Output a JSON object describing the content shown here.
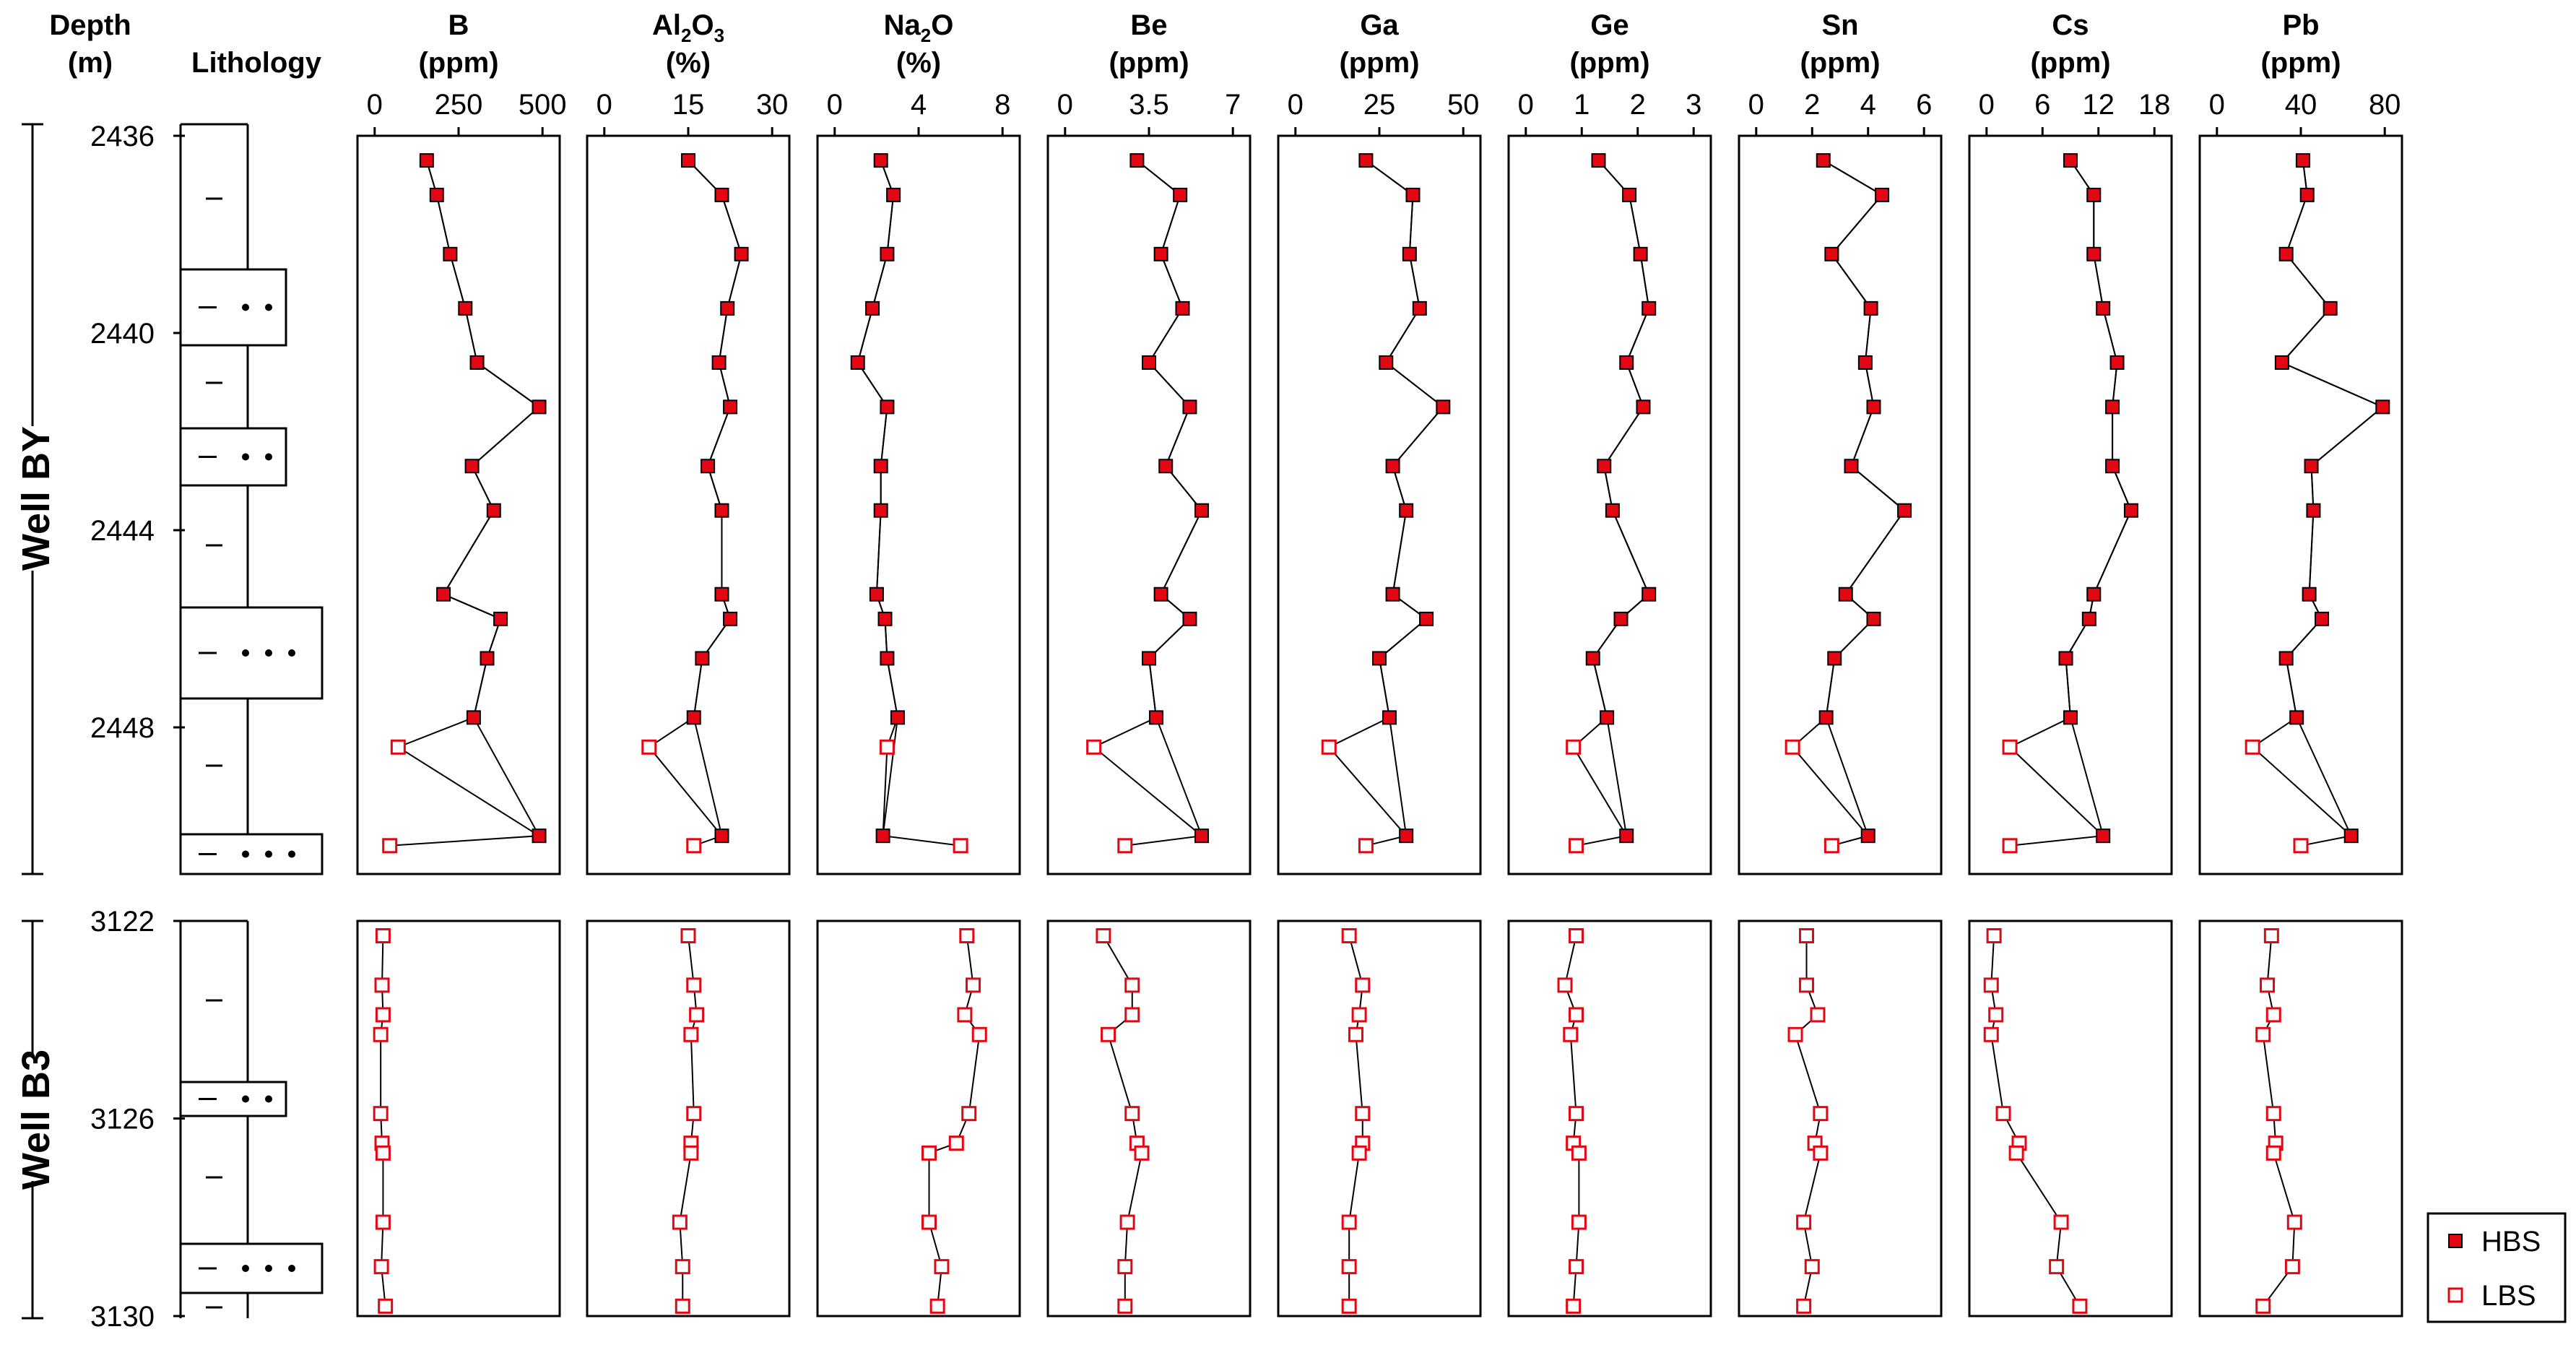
{
  "chart_data": {
    "type": "line",
    "title": "",
    "header": {
      "depth_label": "Depth",
      "depth_unit": "(m)",
      "lithology_label": "Lithology"
    },
    "wells": [
      {
        "name": "Well BY",
        "depth_ticks": [
          2436,
          2440,
          2444,
          2448
        ],
        "ylim": [
          2436,
          2451
        ]
      },
      {
        "name": "Well B3",
        "depth_ticks": [
          3122,
          3126,
          3130
        ],
        "ylim": [
          3122,
          3130
        ]
      }
    ],
    "legend": [
      {
        "key": "HBS",
        "label": "HBS",
        "fill": "#e30613",
        "stroke": "#000000"
      },
      {
        "key": "LBS",
        "label": "LBS",
        "fill": "#ffffff",
        "stroke": "#e30613"
      }
    ],
    "panels": [
      {
        "name": "B",
        "unit": "(ppm)",
        "xlim": [
          0,
          500
        ],
        "ticks": [
          "0",
          "250",
          "500"
        ],
        "by_hbs": [
          {
            "d": 2436.5,
            "v": 155
          },
          {
            "d": 2437.2,
            "v": 185
          },
          {
            "d": 2438.4,
            "v": 225
          },
          {
            "d": 2439.5,
            "v": 270
          },
          {
            "d": 2440.6,
            "v": 305
          },
          {
            "d": 2441.5,
            "v": 490
          },
          {
            "d": 2442.7,
            "v": 290
          },
          {
            "d": 2443.6,
            "v": 355
          },
          {
            "d": 2445.3,
            "v": 205
          },
          {
            "d": 2445.8,
            "v": 375
          },
          {
            "d": 2446.6,
            "v": 335
          },
          {
            "d": 2447.8,
            "v": 295
          },
          {
            "d": 2450.2,
            "v": 490
          }
        ],
        "by_lbs": [
          {
            "d": 2448.4,
            "v": 70
          },
          {
            "d": 2450.4,
            "v": 45
          }
        ],
        "b3_lbs": [
          {
            "d": 3122.3,
            "v": 25
          },
          {
            "d": 3123.3,
            "v": 22
          },
          {
            "d": 3123.9,
            "v": 25
          },
          {
            "d": 3124.3,
            "v": 18
          },
          {
            "d": 3125.9,
            "v": 18
          },
          {
            "d": 3126.5,
            "v": 22
          },
          {
            "d": 3126.7,
            "v": 25
          },
          {
            "d": 3128.1,
            "v": 25
          },
          {
            "d": 3129.0,
            "v": 20
          },
          {
            "d": 3129.8,
            "v": 32
          }
        ]
      },
      {
        "name": "Al2O3",
        "unit": "(%)",
        "xlim": [
          0,
          30
        ],
        "ticks": [
          "0",
          "15",
          "30"
        ],
        "by_hbs": [
          {
            "d": 2436.5,
            "v": 15
          },
          {
            "d": 2437.2,
            "v": 21
          },
          {
            "d": 2438.4,
            "v": 24.5
          },
          {
            "d": 2439.5,
            "v": 22
          },
          {
            "d": 2440.6,
            "v": 20.5
          },
          {
            "d": 2441.5,
            "v": 22.5
          },
          {
            "d": 2442.7,
            "v": 18.5
          },
          {
            "d": 2443.6,
            "v": 21
          },
          {
            "d": 2445.3,
            "v": 21
          },
          {
            "d": 2445.8,
            "v": 22.5
          },
          {
            "d": 2446.6,
            "v": 17.5
          },
          {
            "d": 2447.8,
            "v": 16
          },
          {
            "d": 2450.2,
            "v": 21
          }
        ],
        "by_lbs": [
          {
            "d": 2448.4,
            "v": 8
          },
          {
            "d": 2450.4,
            "v": 16
          }
        ],
        "b3_lbs": [
          {
            "d": 3122.3,
            "v": 15
          },
          {
            "d": 3123.3,
            "v": 16
          },
          {
            "d": 3123.9,
            "v": 16.5
          },
          {
            "d": 3124.3,
            "v": 15.5
          },
          {
            "d": 3125.9,
            "v": 16
          },
          {
            "d": 3126.5,
            "v": 15.5
          },
          {
            "d": 3126.7,
            "v": 15.5
          },
          {
            "d": 3128.1,
            "v": 13.5
          },
          {
            "d": 3129.0,
            "v": 14
          },
          {
            "d": 3129.8,
            "v": 14
          }
        ]
      },
      {
        "name": "Na2O",
        "unit": "(%)",
        "xlim": [
          0,
          8
        ],
        "ticks": [
          "0",
          "4",
          "8"
        ],
        "by_hbs": [
          {
            "d": 2436.5,
            "v": 2.2
          },
          {
            "d": 2437.2,
            "v": 2.8
          },
          {
            "d": 2438.4,
            "v": 2.5
          },
          {
            "d": 2439.5,
            "v": 1.8
          },
          {
            "d": 2440.6,
            "v": 1.1
          },
          {
            "d": 2441.5,
            "v": 2.5
          },
          {
            "d": 2442.7,
            "v": 2.2
          },
          {
            "d": 2443.6,
            "v": 2.2
          },
          {
            "d": 2445.3,
            "v": 2.0
          },
          {
            "d": 2445.8,
            "v": 2.4
          },
          {
            "d": 2446.6,
            "v": 2.5
          },
          {
            "d": 2447.8,
            "v": 3.0
          },
          {
            "d": 2450.2,
            "v": 2.3
          }
        ],
        "by_lbs": [
          {
            "d": 2448.4,
            "v": 2.5
          },
          {
            "d": 2450.4,
            "v": 6.0
          }
        ],
        "b3_lbs": [
          {
            "d": 3122.3,
            "v": 6.3
          },
          {
            "d": 3123.3,
            "v": 6.6
          },
          {
            "d": 3123.9,
            "v": 6.2
          },
          {
            "d": 3124.3,
            "v": 6.9
          },
          {
            "d": 3125.9,
            "v": 6.4
          },
          {
            "d": 3126.5,
            "v": 5.8
          },
          {
            "d": 3126.7,
            "v": 4.5
          },
          {
            "d": 3128.1,
            "v": 4.5
          },
          {
            "d": 3129.0,
            "v": 5.1
          },
          {
            "d": 3129.8,
            "v": 4.9
          }
        ]
      },
      {
        "name": "Be",
        "unit": "(ppm)",
        "xlim": [
          0,
          7
        ],
        "ticks": [
          "0",
          "3.5",
          "7"
        ],
        "by_hbs": [
          {
            "d": 2436.5,
            "v": 3.0
          },
          {
            "d": 2437.2,
            "v": 4.8
          },
          {
            "d": 2438.4,
            "v": 4.0
          },
          {
            "d": 2439.5,
            "v": 4.9
          },
          {
            "d": 2440.6,
            "v": 3.5
          },
          {
            "d": 2441.5,
            "v": 5.2
          },
          {
            "d": 2442.7,
            "v": 4.2
          },
          {
            "d": 2443.6,
            "v": 5.7
          },
          {
            "d": 2445.3,
            "v": 4.0
          },
          {
            "d": 2445.8,
            "v": 5.2
          },
          {
            "d": 2446.6,
            "v": 3.5
          },
          {
            "d": 2447.8,
            "v": 3.8
          },
          {
            "d": 2450.2,
            "v": 5.7
          }
        ],
        "by_lbs": [
          {
            "d": 2448.4,
            "v": 1.2
          },
          {
            "d": 2450.4,
            "v": 2.5
          }
        ],
        "b3_lbs": [
          {
            "d": 3122.3,
            "v": 1.6
          },
          {
            "d": 3123.3,
            "v": 2.8
          },
          {
            "d": 3123.9,
            "v": 2.8
          },
          {
            "d": 3124.3,
            "v": 1.8
          },
          {
            "d": 3125.9,
            "v": 2.8
          },
          {
            "d": 3126.5,
            "v": 3.0
          },
          {
            "d": 3126.7,
            "v": 3.2
          },
          {
            "d": 3128.1,
            "v": 2.6
          },
          {
            "d": 3129.0,
            "v": 2.5
          },
          {
            "d": 3129.8,
            "v": 2.5
          }
        ]
      },
      {
        "name": "Ga",
        "unit": "(ppm)",
        "xlim": [
          0,
          50
        ],
        "ticks": [
          "0",
          "25",
          "50"
        ],
        "by_hbs": [
          {
            "d": 2436.5,
            "v": 21
          },
          {
            "d": 2437.2,
            "v": 35
          },
          {
            "d": 2438.4,
            "v": 34
          },
          {
            "d": 2439.5,
            "v": 37
          },
          {
            "d": 2440.6,
            "v": 27
          },
          {
            "d": 2441.5,
            "v": 44
          },
          {
            "d": 2442.7,
            "v": 29
          },
          {
            "d": 2443.6,
            "v": 33
          },
          {
            "d": 2445.3,
            "v": 29
          },
          {
            "d": 2445.8,
            "v": 39
          },
          {
            "d": 2446.6,
            "v": 25
          },
          {
            "d": 2447.8,
            "v": 28
          },
          {
            "d": 2450.2,
            "v": 33
          }
        ],
        "by_lbs": [
          {
            "d": 2448.4,
            "v": 10
          },
          {
            "d": 2450.4,
            "v": 21
          }
        ],
        "b3_lbs": [
          {
            "d": 3122.3,
            "v": 16
          },
          {
            "d": 3123.3,
            "v": 20
          },
          {
            "d": 3123.9,
            "v": 19
          },
          {
            "d": 3124.3,
            "v": 18
          },
          {
            "d": 3125.9,
            "v": 20
          },
          {
            "d": 3126.5,
            "v": 20
          },
          {
            "d": 3126.7,
            "v": 19
          },
          {
            "d": 3128.1,
            "v": 16
          },
          {
            "d": 3129.0,
            "v": 16
          },
          {
            "d": 3129.8,
            "v": 16
          }
        ]
      },
      {
        "name": "Ge",
        "unit": "(ppm)",
        "xlim": [
          0,
          3
        ],
        "ticks": [
          "0",
          "1",
          "2",
          "3"
        ],
        "by_hbs": [
          {
            "d": 2436.5,
            "v": 1.3
          },
          {
            "d": 2437.2,
            "v": 1.85
          },
          {
            "d": 2438.4,
            "v": 2.05
          },
          {
            "d": 2439.5,
            "v": 2.2
          },
          {
            "d": 2440.6,
            "v": 1.8
          },
          {
            "d": 2441.5,
            "v": 2.1
          },
          {
            "d": 2442.7,
            "v": 1.4
          },
          {
            "d": 2443.6,
            "v": 1.55
          },
          {
            "d": 2445.3,
            "v": 2.2
          },
          {
            "d": 2445.8,
            "v": 1.7
          },
          {
            "d": 2446.6,
            "v": 1.2
          },
          {
            "d": 2447.8,
            "v": 1.45
          },
          {
            "d": 2450.2,
            "v": 1.8
          }
        ],
        "by_lbs": [
          {
            "d": 2448.4,
            "v": 0.85
          },
          {
            "d": 2450.4,
            "v": 0.9
          }
        ],
        "b3_lbs": [
          {
            "d": 3122.3,
            "v": 0.9
          },
          {
            "d": 3123.3,
            "v": 0.7
          },
          {
            "d": 3123.9,
            "v": 0.9
          },
          {
            "d": 3124.3,
            "v": 0.8
          },
          {
            "d": 3125.9,
            "v": 0.9
          },
          {
            "d": 3126.5,
            "v": 0.85
          },
          {
            "d": 3126.7,
            "v": 0.95
          },
          {
            "d": 3128.1,
            "v": 0.95
          },
          {
            "d": 3129.0,
            "v": 0.9
          },
          {
            "d": 3129.8,
            "v": 0.85
          }
        ]
      },
      {
        "name": "Sn",
        "unit": "(ppm)",
        "xlim": [
          0,
          6
        ],
        "ticks": [
          "0",
          "2",
          "4",
          "6"
        ],
        "by_hbs": [
          {
            "d": 2436.5,
            "v": 2.4
          },
          {
            "d": 2437.2,
            "v": 4.5
          },
          {
            "d": 2438.4,
            "v": 2.7
          },
          {
            "d": 2439.5,
            "v": 4.1
          },
          {
            "d": 2440.6,
            "v": 3.9
          },
          {
            "d": 2441.5,
            "v": 4.2
          },
          {
            "d": 2442.7,
            "v": 3.4
          },
          {
            "d": 2443.6,
            "v": 5.3
          },
          {
            "d": 2445.3,
            "v": 3.2
          },
          {
            "d": 2445.8,
            "v": 4.2
          },
          {
            "d": 2446.6,
            "v": 2.8
          },
          {
            "d": 2447.8,
            "v": 2.5
          },
          {
            "d": 2450.2,
            "v": 4.0
          }
        ],
        "by_lbs": [
          {
            "d": 2448.4,
            "v": 1.3
          },
          {
            "d": 2450.4,
            "v": 2.7
          }
        ],
        "b3_lbs": [
          {
            "d": 3122.3,
            "v": 1.8
          },
          {
            "d": 3123.3,
            "v": 1.8
          },
          {
            "d": 3123.9,
            "v": 2.2
          },
          {
            "d": 3124.3,
            "v": 1.4
          },
          {
            "d": 3125.9,
            "v": 2.3
          },
          {
            "d": 3126.5,
            "v": 2.1
          },
          {
            "d": 3126.7,
            "v": 2.3
          },
          {
            "d": 3128.1,
            "v": 1.7
          },
          {
            "d": 3129.0,
            "v": 2.0
          },
          {
            "d": 3129.8,
            "v": 1.7
          }
        ]
      },
      {
        "name": "Cs",
        "unit": "(ppm)",
        "xlim": [
          0,
          18
        ],
        "ticks": [
          "0",
          "6",
          "12",
          "18"
        ],
        "by_hbs": [
          {
            "d": 2436.5,
            "v": 9
          },
          {
            "d": 2437.2,
            "v": 11.5
          },
          {
            "d": 2438.4,
            "v": 11.5
          },
          {
            "d": 2439.5,
            "v": 12.5
          },
          {
            "d": 2440.6,
            "v": 14
          },
          {
            "d": 2441.5,
            "v": 13.5
          },
          {
            "d": 2442.7,
            "v": 13.5
          },
          {
            "d": 2443.6,
            "v": 15.5
          },
          {
            "d": 2445.3,
            "v": 11.5
          },
          {
            "d": 2445.8,
            "v": 11
          },
          {
            "d": 2446.6,
            "v": 8.5
          },
          {
            "d": 2447.8,
            "v": 9
          },
          {
            "d": 2450.2,
            "v": 12.5
          }
        ],
        "by_lbs": [
          {
            "d": 2448.4,
            "v": 2.5
          },
          {
            "d": 2450.4,
            "v": 2.5
          }
        ],
        "b3_lbs": [
          {
            "d": 3122.3,
            "v": 0.8
          },
          {
            "d": 3123.3,
            "v": 0.5
          },
          {
            "d": 3123.9,
            "v": 1.0
          },
          {
            "d": 3124.3,
            "v": 0.5
          },
          {
            "d": 3125.9,
            "v": 1.8
          },
          {
            "d": 3126.5,
            "v": 3.5
          },
          {
            "d": 3126.7,
            "v": 3.2
          },
          {
            "d": 3128.1,
            "v": 8.0
          },
          {
            "d": 3129.0,
            "v": 7.5
          },
          {
            "d": 3129.8,
            "v": 10.0
          }
        ]
      },
      {
        "name": "Pb",
        "unit": "(ppm)",
        "xlim": [
          0,
          80
        ],
        "ticks": [
          "0",
          "40",
          "80"
        ],
        "by_hbs": [
          {
            "d": 2436.5,
            "v": 41
          },
          {
            "d": 2437.2,
            "v": 43
          },
          {
            "d": 2438.4,
            "v": 33
          },
          {
            "d": 2439.5,
            "v": 54
          },
          {
            "d": 2440.6,
            "v": 31
          },
          {
            "d": 2441.5,
            "v": 79
          },
          {
            "d": 2442.7,
            "v": 45
          },
          {
            "d": 2443.6,
            "v": 46
          },
          {
            "d": 2445.3,
            "v": 44
          },
          {
            "d": 2445.8,
            "v": 50
          },
          {
            "d": 2446.6,
            "v": 33
          },
          {
            "d": 2447.8,
            "v": 38
          },
          {
            "d": 2450.2,
            "v": 64
          }
        ],
        "by_lbs": [
          {
            "d": 2448.4,
            "v": 17
          },
          {
            "d": 2450.4,
            "v": 40
          }
        ],
        "b3_lbs": [
          {
            "d": 3122.3,
            "v": 26
          },
          {
            "d": 3123.3,
            "v": 24
          },
          {
            "d": 3123.9,
            "v": 27
          },
          {
            "d": 3124.3,
            "v": 22
          },
          {
            "d": 3125.9,
            "v": 27
          },
          {
            "d": 3126.5,
            "v": 28
          },
          {
            "d": 3126.7,
            "v": 27
          },
          {
            "d": 3128.1,
            "v": 37
          },
          {
            "d": 3129.0,
            "v": 36
          },
          {
            "d": 3129.8,
            "v": 22
          }
        ]
      }
    ],
    "xlabel": "",
    "ylabel": "Depth (m)"
  }
}
